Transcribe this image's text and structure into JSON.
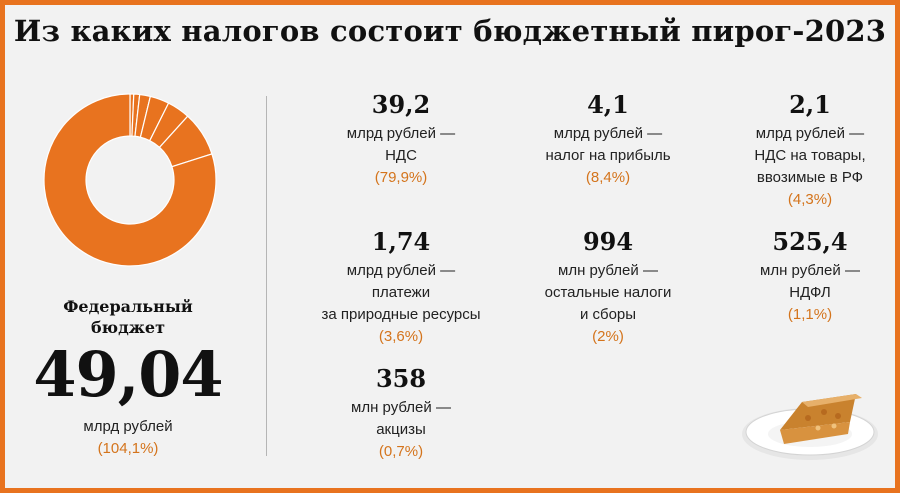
{
  "title": "Из каких налогов состоит бюджетный пирог-2023",
  "federal": {
    "label": "Федеральный бюджет",
    "value": "49,04",
    "unit": "млрд рублей",
    "percent": "(104,1%)"
  },
  "items": [
    {
      "value": "39,2",
      "desc": "млрд рублей —\nНДС",
      "percent": "(79,9%)"
    },
    {
      "value": "4,1",
      "desc": "млрд рублей —\nналог на прибыль",
      "percent": "(8,4%)"
    },
    {
      "value": "2,1",
      "desc": "млрд рублей —\nНДС на товары,\nввозимые в РФ",
      "percent": "(4,3%)"
    },
    {
      "value": "1,74",
      "desc": "млрд рублей —\nплатежи\nза природные ресурсы",
      "percent": "(3,6%)"
    },
    {
      "value": "994",
      "desc": "млн рублей —\nостальные налоги\nи сборы",
      "percent": "(2%)"
    },
    {
      "value": "525,4",
      "desc": "млн рублей —\nНДФЛ",
      "percent": "(1,1%)"
    },
    {
      "value": "358",
      "desc": "млн рублей —\nакцизы",
      "percent": "(0,7%)"
    }
  ],
  "colors": {
    "accent": "#e8731f",
    "percent_text": "#d4741c",
    "background": "#f2f2f2"
  },
  "chart_data": {
    "type": "pie",
    "title": "Из каких налогов состоит бюджетный пирог-2023",
    "labels": [
      "НДС",
      "налог на прибыль",
      "НДС на товары, ввозимые в РФ",
      "платежи за природные ресурсы",
      "остальные налоги и сборы",
      "НДФЛ",
      "акцизы"
    ],
    "values": [
      79.9,
      8.4,
      4.3,
      3.6,
      2.0,
      1.1,
      0.7
    ],
    "unit": "%",
    "color": "#e8731f"
  }
}
